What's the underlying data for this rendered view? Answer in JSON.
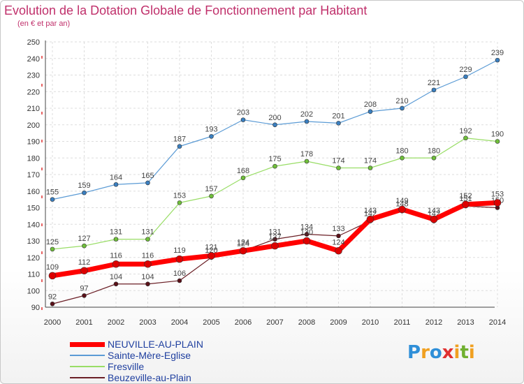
{
  "title": "Evolution de la Dotation Globale de Fonctionnement par Habitant",
  "subtitle": "(en € et par an)",
  "logo": {
    "text": "Proxiti",
    "letters": [
      {
        "ch": "P",
        "color": "#2f8fd8"
      },
      {
        "ch": "r",
        "color": "#f0a020"
      },
      {
        "ch": "o",
        "color": "#2f8fd8"
      },
      {
        "ch": "x",
        "color": "#e03030"
      },
      {
        "ch": "i",
        "color": "#f0a020"
      },
      {
        "ch": "t",
        "color": "#70b030"
      },
      {
        "ch": "i",
        "color": "#f0a020"
      }
    ]
  },
  "chart_data": {
    "type": "line",
    "title": "Evolution de la Dotation Globale de Fonctionnement par Habitant",
    "ylabel": "(en € et par an)",
    "xlabel": "",
    "x": [
      "2000",
      "2001",
      "2002",
      "2003",
      "2004",
      "2005",
      "2006",
      "2007",
      "2008",
      "2009",
      "2010",
      "2011",
      "2012",
      "2013",
      "2014"
    ],
    "ylim": [
      90,
      250
    ],
    "yticks": [
      90,
      100,
      110,
      120,
      130,
      140,
      150,
      160,
      170,
      180,
      190,
      200,
      210,
      220,
      230,
      240,
      250
    ],
    "grid": true,
    "series": [
      {
        "name": "Sainte-Mère-Eglise",
        "color": "#5b9bd5",
        "marker": "#3a7fc0",
        "width": 1.2,
        "values": [
          155,
          159,
          164,
          165,
          187,
          193,
          203,
          200,
          202,
          201,
          208,
          210,
          221,
          229,
          239
        ]
      },
      {
        "name": "Fresville",
        "color": "#99dd66",
        "marker": "#6fbf3a",
        "width": 1.2,
        "values": [
          125,
          127,
          131,
          131,
          153,
          157,
          168,
          175,
          178,
          174,
          174,
          180,
          180,
          192,
          190
        ]
      },
      {
        "name": "Beuzeville-au-Plain",
        "color": "#6b1f26",
        "marker": "#5a1018",
        "width": 1.2,
        "values": [
          92,
          97,
          104,
          104,
          106,
          120,
          124,
          131,
          134,
          133,
          142,
          148,
          142,
          151,
          150
        ]
      },
      {
        "name": "NEUVILLE-AU-PLAIN",
        "color": "#ff0000",
        "marker": "#dd0000",
        "width": 7,
        "values": [
          109,
          112,
          116,
          116,
          119,
          121,
          124,
          127,
          130,
          124,
          143,
          149,
          143,
          152,
          153
        ]
      }
    ],
    "legend": [
      {
        "name": "NEUVILLE-AU-PLAIN",
        "color": "#ff0000",
        "width": 7
      },
      {
        "name": "Sainte-Mère-Eglise",
        "color": "#5b9bd5",
        "width": 1.5
      },
      {
        "name": "Fresville",
        "color": "#99dd66",
        "width": 1.5
      },
      {
        "name": "Beuzeville-au-Plain",
        "color": "#6b1f26",
        "width": 1.5
      }
    ],
    "legend_position": "bottom-left"
  }
}
